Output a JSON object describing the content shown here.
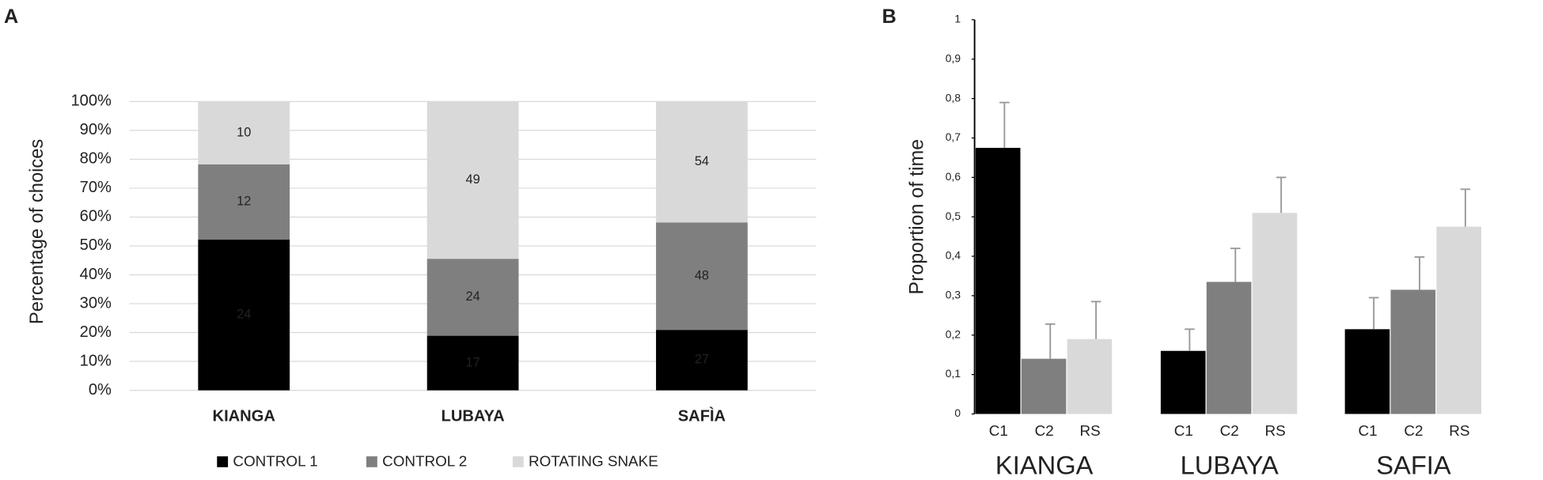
{
  "chart_data": [
    {
      "type": "percent-stacked-bar",
      "panel_label": "A",
      "ylabel": "Percentage of choices",
      "categories": [
        "KIANGA",
        "LUBAYA",
        "SAFÌA"
      ],
      "series": [
        {
          "name": "CONTROL 1",
          "color": "#000000",
          "label_color": "#ffffff",
          "values": [
            24,
            17,
            27
          ]
        },
        {
          "name": "CONTROL 2",
          "color": "#7f7f7f",
          "label_color": "#ffffff",
          "values": [
            12,
            24,
            48
          ]
        },
        {
          "name": "ROTATING SNAKE",
          "color": "#d9d9d9",
          "label_color": "#404040",
          "values": [
            10,
            49,
            54
          ]
        }
      ],
      "ylim": [
        0,
        100
      ],
      "yticks": [
        {
          "value": 0,
          "label": "0%"
        },
        {
          "value": 10,
          "label": "10%"
        },
        {
          "value": 20,
          "label": "20%"
        },
        {
          "value": 30,
          "label": "30%"
        },
        {
          "value": 40,
          "label": "40%"
        },
        {
          "value": 50,
          "label": "50%"
        },
        {
          "value": 60,
          "label": "60%"
        },
        {
          "value": 70,
          "label": "70%"
        },
        {
          "value": 80,
          "label": "80%"
        },
        {
          "value": 90,
          "label": "90%"
        },
        {
          "value": 100,
          "label": "100%"
        }
      ],
      "grid": true,
      "legend": "bottom"
    },
    {
      "type": "grouped-bar",
      "panel_label": "B",
      "ylabel": "Proportion of time",
      "categories": [
        "KIANGA",
        "LUBAYA",
        "SAFIA"
      ],
      "series": [
        {
          "name": "C1",
          "color": "#000000",
          "values": [
            0.675,
            0.16,
            0.215
          ],
          "errors": [
            0.115,
            0.055,
            0.08
          ]
        },
        {
          "name": "C2",
          "color": "#7f7f7f",
          "values": [
            0.14,
            0.335,
            0.315
          ],
          "errors": [
            0.088,
            0.085,
            0.083
          ]
        },
        {
          "name": "RS",
          "color": "#d9d9d9",
          "values": [
            0.19,
            0.51,
            0.475
          ],
          "errors": [
            0.095,
            0.09,
            0.095
          ]
        }
      ],
      "ylim": [
        0,
        1
      ],
      "yticks": [
        0,
        {
          "value": 0.1,
          "label": "0,1"
        },
        {
          "value": 0.2,
          "label": "0,2"
        },
        {
          "value": 0.3,
          "label": "0,3"
        },
        {
          "value": 0.4,
          "label": "0,4"
        },
        {
          "value": 0.5,
          "label": "0,5"
        },
        {
          "value": 0.6,
          "label": "0,6"
        },
        {
          "value": 0.7,
          "label": "0,7"
        },
        {
          "value": 0.8,
          "label": "0,8"
        },
        {
          "value": 0.9,
          "label": "0,9"
        },
        1
      ],
      "grid": false,
      "error_color": "#999999"
    }
  ]
}
